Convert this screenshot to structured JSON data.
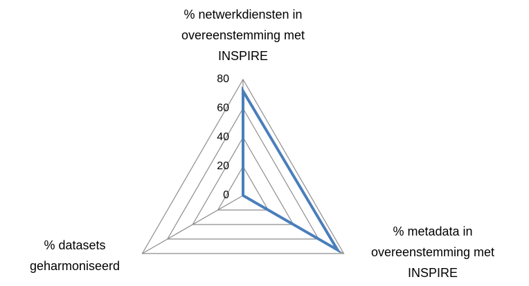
{
  "chart_data": {
    "type": "radar",
    "categories": [
      "% netwerkdiensten in overeenstemming met INSPIRE",
      "% metadata in overeenstemming met INSPIRE",
      "% datasets geharmoniseerd"
    ],
    "values": [
      72,
      75,
      0
    ],
    "color": "#4a7ebb",
    "ylim": [
      0,
      80
    ],
    "yticks": [
      0,
      20,
      40,
      60,
      80
    ],
    "grid": true
  }
}
